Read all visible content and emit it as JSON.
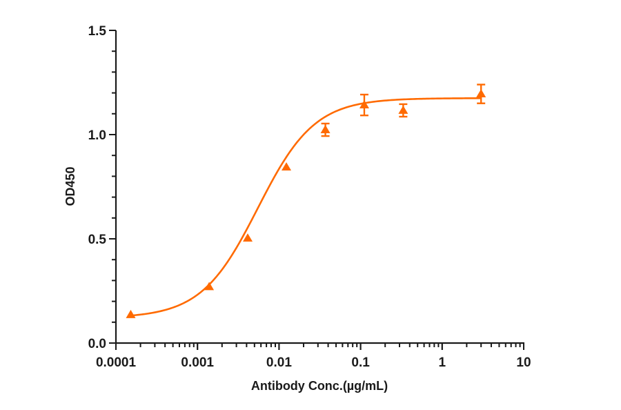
{
  "chart_data": {
    "type": "scatter",
    "title": "",
    "xlabel": "Antibody Conc.(µg/mL)",
    "ylabel": "OD450",
    "xscale": "log",
    "xlim": [
      0.0001,
      10
    ],
    "ylim": [
      0,
      1.5
    ],
    "x_ticks": [
      "0.0001",
      "0.001",
      "0.01",
      "0.1",
      "1",
      "10"
    ],
    "y_ticks": [
      "0.0",
      "0.5",
      "1.0",
      "1.5"
    ],
    "grid": false,
    "legend": null,
    "series": [
      {
        "name": "OD450",
        "color": "#ff6a00",
        "marker": "triangle",
        "x": [
          0.000152,
          0.00139,
          0.00413,
          0.0123,
          0.037,
          0.111,
          0.333,
          3.0
        ],
        "y": [
          0.136,
          0.27,
          0.503,
          0.844,
          1.023,
          1.142,
          1.116,
          1.195
        ],
        "error": [
          0.0,
          0.0,
          0.0,
          0.0,
          0.03,
          0.05,
          0.03,
          0.045
        ],
        "fit": {
          "model": "4PL",
          "bottom": 0.12,
          "top": 1.175,
          "ec50": 0.0055,
          "hill": 1.25,
          "x_range": [
            0.000152,
            3.0
          ]
        }
      }
    ]
  }
}
